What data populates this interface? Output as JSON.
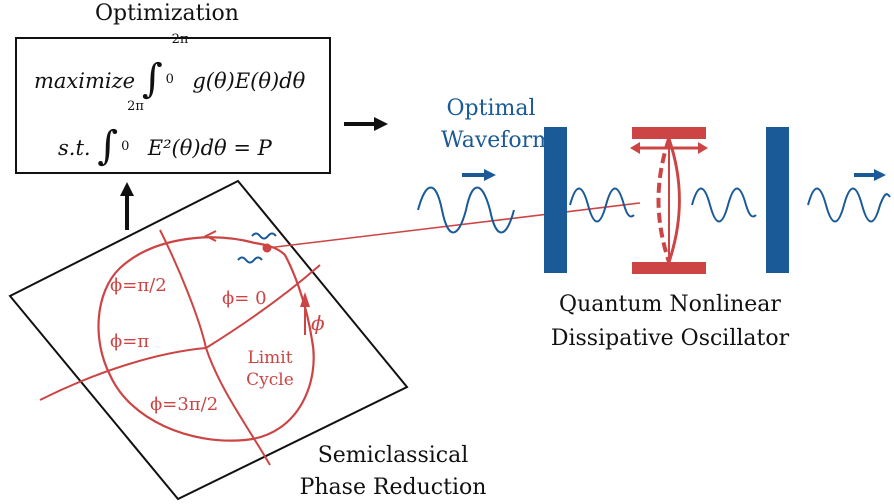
{
  "optimization": {
    "title": "Optimization",
    "objective_word": "maximize",
    "objective_integrand": "g(θ)E(θ)dθ",
    "constraint_prefix": "s.t.",
    "constraint_integrand": "E²(θ)dθ = P",
    "upper_limit": "2π",
    "lower_limit": "0"
  },
  "waveform": {
    "line1": "Optimal",
    "line2": "Waveform"
  },
  "oscillator": {
    "line1": "Quantum Nonlinear",
    "line2": "Dissipative Oscillator"
  },
  "phase_reduction": {
    "line1": "Semiclassical",
    "line2": "Phase Reduction",
    "phase_labels": [
      "ϕ=π/2",
      "ϕ= 0",
      "ϕ=π",
      "ϕ=3π/2"
    ],
    "phase_symbol": "ϕ",
    "limit_cycle_line1": "Limit",
    "limit_cycle_line2": "Cycle"
  },
  "colors": {
    "blue": "#1a5a96",
    "red": "#cc4444",
    "black": "#111111"
  }
}
